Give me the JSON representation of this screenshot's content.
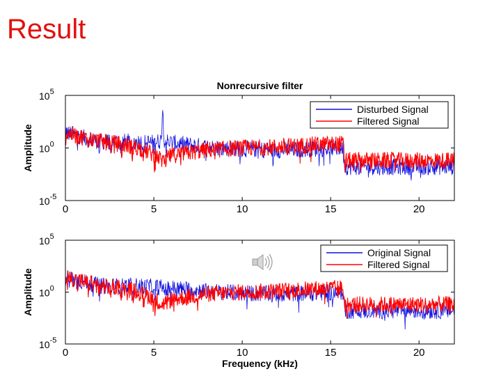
{
  "slide": {
    "title": "Result"
  },
  "colors": {
    "title": "#e0110f",
    "disturbed": "#1010e0",
    "filtered": "#ff0000",
    "axis": "#000000"
  },
  "icons": [
    "speaker-icon"
  ],
  "chart_data": [
    {
      "type": "line",
      "title": "Nonrecursive filter",
      "xlabel": "",
      "ylabel": "Amplitude",
      "yscale": "log",
      "xlim": [
        0,
        22
      ],
      "ylim_exp": [
        -5,
        5
      ],
      "x_ticks": [
        0,
        5,
        10,
        15,
        20
      ],
      "y_ticks": [
        {
          "base": "10",
          "exp": "5"
        },
        {
          "base": "10",
          "exp": "0"
        },
        {
          "base": "10",
          "exp": "-5"
        }
      ],
      "legend_position": "top-right",
      "series": [
        {
          "name": "Disturbed Signal",
          "color": "#1010e0",
          "envelope": {
            "x": [
              0,
              1,
              2,
              3,
              4,
              5,
              5.4,
              5.5,
              5.6,
              6,
              8,
              10,
              12,
              14,
              15.7,
              15.8,
              18,
              20,
              22
            ],
            "y_exp": [
              1.5,
              1.0,
              0.6,
              0.6,
              0.6,
              0.5,
              0.7,
              3.8,
              0.7,
              0.5,
              0.1,
              -0.1,
              -0.2,
              -0.1,
              0.0,
              -1.8,
              -1.8,
              -1.8,
              -1.8
            ]
          }
        },
        {
          "name": "Filtered Signal",
          "color": "#ff0000",
          "envelope": {
            "x": [
              0,
              1,
              2,
              3,
              4,
              5,
              5.5,
              6,
              8,
              10,
              12,
              14,
              15.7,
              15.8,
              18,
              20,
              22
            ],
            "y_exp": [
              1.5,
              1.0,
              0.6,
              0.4,
              0.1,
              -0.6,
              -1.2,
              -0.7,
              -0.2,
              0.0,
              0.1,
              0.3,
              0.4,
              -1.2,
              -1.2,
              -1.2,
              -1.2
            ]
          }
        }
      ]
    },
    {
      "type": "line",
      "title": "",
      "xlabel": "Frequency (kHz)",
      "ylabel": "Amplitude",
      "yscale": "log",
      "xlim": [
        0,
        22
      ],
      "ylim_exp": [
        -5,
        5
      ],
      "x_ticks": [
        0,
        5,
        10,
        15,
        20
      ],
      "y_ticks": [
        {
          "base": "10",
          "exp": "5"
        },
        {
          "base": "10",
          "exp": "0"
        },
        {
          "base": "10",
          "exp": "-5"
        }
      ],
      "legend_position": "top-right",
      "series": [
        {
          "name": "Original Signal",
          "color": "#1010e0",
          "envelope": {
            "x": [
              0,
              1,
              2,
              3,
              4,
              5,
              6,
              8,
              10,
              12,
              14,
              15.7,
              15.8,
              18,
              20,
              22
            ],
            "y_exp": [
              1.5,
              1.0,
              0.6,
              0.6,
              0.6,
              0.5,
              0.4,
              0.1,
              -0.1,
              -0.2,
              -0.1,
              0.0,
              -1.8,
              -1.8,
              -1.8,
              -1.8
            ]
          }
        },
        {
          "name": "Filtered Signal",
          "color": "#ff0000",
          "envelope": {
            "x": [
              0,
              1,
              2,
              3,
              4,
              5,
              5.5,
              6,
              8,
              10,
              12,
              14,
              15.7,
              15.8,
              18,
              20,
              22
            ],
            "y_exp": [
              1.5,
              1.0,
              0.6,
              0.4,
              0.1,
              -0.6,
              -1.2,
              -0.7,
              -0.2,
              0.0,
              0.1,
              0.3,
              0.4,
              -1.2,
              -1.2,
              -1.2,
              -1.2
            ]
          }
        }
      ]
    }
  ]
}
